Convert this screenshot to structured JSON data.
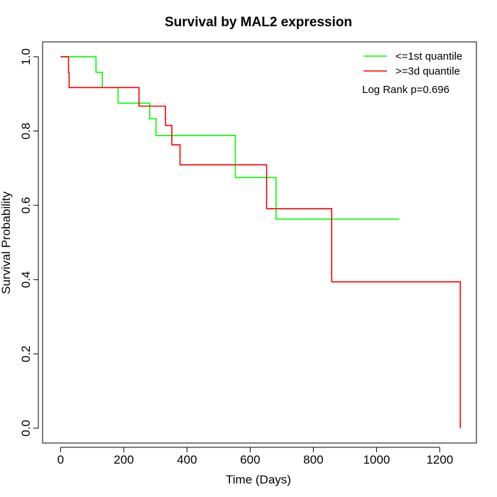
{
  "chart_data": {
    "type": "line",
    "subtype": "kaplan-meier",
    "title": "Survival by MAL2 expression",
    "xlabel": "Time (Days)",
    "ylabel": "Survival Probability",
    "xlim": [
      0,
      1265
    ],
    "ylim": [
      0,
      1.0
    ],
    "xticks": [
      0,
      200,
      400,
      600,
      800,
      1000,
      1200
    ],
    "yticks": [
      0.0,
      0.2,
      0.4,
      0.6,
      0.8,
      1.0
    ],
    "xtick_labels": [
      "0",
      "200",
      "400",
      "600",
      "800",
      "1000",
      "1200"
    ],
    "ytick_labels": [
      "0.0",
      "0.2",
      "0.4",
      "0.6",
      "0.8",
      "1.0"
    ],
    "grid": false,
    "legend_position": "top-right",
    "annotation": "Log Rank p=0.696",
    "series": [
      {
        "name": "<=1st quantile",
        "color": "#00ff00",
        "steps": [
          {
            "x": 0,
            "y": 1.0
          },
          {
            "x": 112,
            "y": 0.958
          },
          {
            "x": 132,
            "y": 0.917
          },
          {
            "x": 182,
            "y": 0.875
          },
          {
            "x": 282,
            "y": 0.833
          },
          {
            "x": 302,
            "y": 0.788
          },
          {
            "x": 553,
            "y": 0.675
          },
          {
            "x": 682,
            "y": 0.563
          }
        ],
        "end_x": 1072
      },
      {
        "name": ">=3d quantile",
        "color": "#ff0000",
        "steps": [
          {
            "x": 0,
            "y": 1.0
          },
          {
            "x": 25,
            "y": 0.958
          },
          {
            "x": 27,
            "y": 0.917
          },
          {
            "x": 248,
            "y": 0.867
          },
          {
            "x": 332,
            "y": 0.815
          },
          {
            "x": 352,
            "y": 0.763
          },
          {
            "x": 378,
            "y": 0.709
          },
          {
            "x": 652,
            "y": 0.591
          },
          {
            "x": 858,
            "y": 0.394
          },
          {
            "x": 1265,
            "y": 0.0
          }
        ],
        "end_x": 1265
      }
    ]
  }
}
